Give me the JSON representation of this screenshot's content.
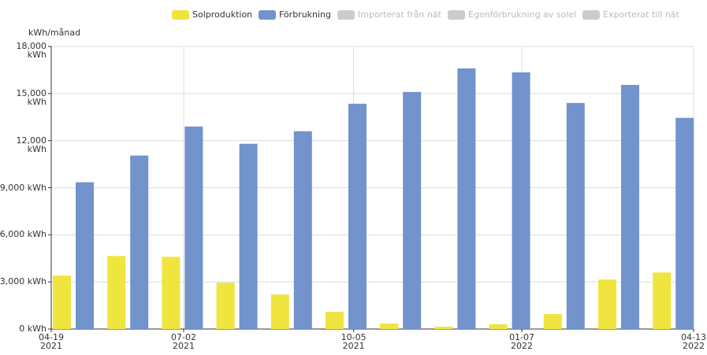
{
  "chart_data": {
    "type": "bar",
    "y_label": "kWh/månad",
    "categories": [
      null,
      null,
      null,
      null,
      null,
      null,
      null,
      null,
      null,
      null,
      null,
      null
    ],
    "series": [
      {
        "name": "Solproduktion",
        "color": "#f0e43f",
        "values": [
          3400,
          4650,
          4600,
          2950,
          2200,
          1100,
          350,
          150,
          300,
          950,
          3150,
          3600
        ]
      },
      {
        "name": "Förbrukning",
        "color": "#7293cb",
        "values": [
          9350,
          11050,
          12900,
          11800,
          12600,
          14350,
          15100,
          16600,
          16350,
          14400,
          15550,
          13450
        ]
      },
      {
        "name": "Importerat från nät",
        "color": "#cccccc",
        "hidden": true
      },
      {
        "name": "Egenförbrukning av solel",
        "color": "#cccccc",
        "hidden": true
      },
      {
        "name": "Exporterat till nät",
        "color": "#cccccc",
        "hidden": true
      }
    ],
    "xlim": [
      "2021-04-19",
      "2022-04-13"
    ],
    "xticks": [
      {
        "value": "2021-04-19",
        "label": "04-19\n2021"
      },
      {
        "value": "2021-07-02",
        "label": "07-02\n2021"
      },
      {
        "value": "2021-10-05",
        "label": "10-05\n2021"
      },
      {
        "value": "2022-01-07",
        "label": "01-07\n2022"
      },
      {
        "value": "2022-04-13",
        "label": "04-13\n2022"
      }
    ],
    "ylim": [
      0,
      18000
    ],
    "yticks": [
      {
        "value": 0,
        "label": "0 kWh"
      },
      {
        "value": 3000,
        "label": "3,000 kWh"
      },
      {
        "value": 6000,
        "label": "6,000 kWh"
      },
      {
        "value": 9000,
        "label": "9,000 kWh"
      },
      {
        "value": 12000,
        "label": "12,000 kWh"
      },
      {
        "value": 15000,
        "label": "15,000 kWh"
      },
      {
        "value": 18000,
        "label": "18,000 kWh"
      }
    ],
    "grid": true
  }
}
